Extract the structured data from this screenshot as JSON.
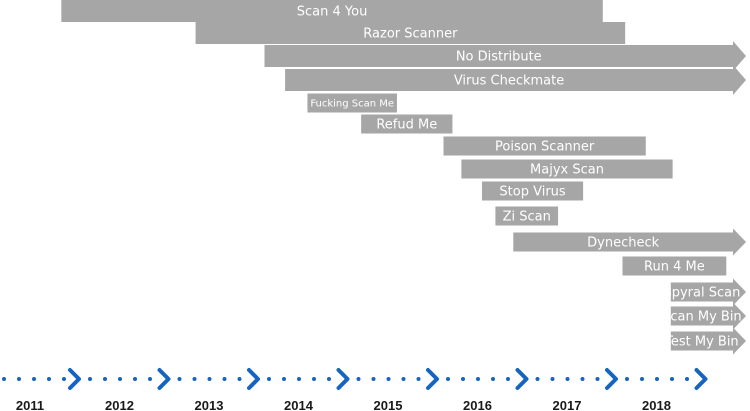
{
  "chart_data": {
    "type": "timeline",
    "x_axis": {
      "ticks": [
        "2011",
        "2012",
        "2013",
        "2014",
        "2015",
        "2016",
        "2017",
        "2018"
      ],
      "range": [
        2011,
        2019
      ],
      "marker_color": "#1565c0"
    },
    "bar_color": "#a6a6a6",
    "label_color": "#ffffff",
    "bars": [
      {
        "name": "Scan 4 You",
        "start": 2011.35,
        "end": 2017.4,
        "ongoing": false
      },
      {
        "name": "Razor Scanner",
        "start": 2012.85,
        "end": 2017.65,
        "ongoing": false
      },
      {
        "name": "No Distribute",
        "start": 2013.62,
        "end": 2019.0,
        "ongoing": true
      },
      {
        "name": "Virus Checkmate",
        "start": 2013.85,
        "end": 2019.0,
        "ongoing": true
      },
      {
        "name": "Fucking Scan Me",
        "start": 2014.1,
        "end": 2015.1,
        "ongoing": false
      },
      {
        "name": "Refud Me",
        "start": 2014.7,
        "end": 2015.72,
        "ongoing": false
      },
      {
        "name": "Poison Scanner",
        "start": 2015.62,
        "end": 2017.88,
        "ongoing": false
      },
      {
        "name": "Majyx Scan",
        "start": 2015.82,
        "end": 2018.18,
        "ongoing": false
      },
      {
        "name": "Stop Virus",
        "start": 2016.05,
        "end": 2017.18,
        "ongoing": false
      },
      {
        "name": "Zi Scan",
        "start": 2016.2,
        "end": 2016.9,
        "ongoing": false
      },
      {
        "name": "Dynecheck",
        "start": 2016.4,
        "end": 2019.0,
        "ongoing": true
      },
      {
        "name": "Run 4 Me",
        "start": 2017.62,
        "end": 2018.78,
        "ongoing": false
      },
      {
        "name": "Spyral Scan",
        "start": 2018.16,
        "end": 2019.0,
        "ongoing": true
      },
      {
        "name": "Scan My Bin",
        "start": 2018.16,
        "end": 2019.0,
        "ongoing": true
      },
      {
        "name": "Test My Bin",
        "start": 2018.16,
        "end": 2019.0,
        "ongoing": true
      }
    ]
  }
}
